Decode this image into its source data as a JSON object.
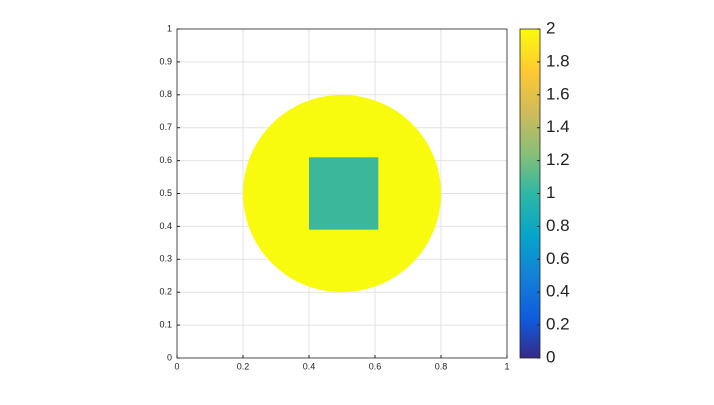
{
  "chart_data": {
    "type": "region",
    "xlim": [
      0,
      1
    ],
    "ylim": [
      0,
      1
    ],
    "xticks": [
      0,
      0.2,
      0.4,
      0.6,
      0.8,
      1
    ],
    "yticks": [
      0,
      0.1,
      0.2,
      0.3,
      0.4,
      0.5,
      0.6,
      0.7,
      0.8,
      0.9,
      1
    ],
    "grid": true,
    "regions": [
      {
        "shape": "circle",
        "cx": 0.5,
        "cy": 0.5,
        "r": 0.3,
        "value": 2,
        "color": "#f9fb0e"
      },
      {
        "shape": "rect",
        "x": [
          0.4,
          0.61
        ],
        "y": [
          0.39,
          0.61
        ],
        "value": 1,
        "color": "#3bb89b"
      }
    ],
    "colormap": "parula",
    "colorbar": {
      "lim": [
        0,
        2
      ],
      "ticks": [
        0,
        0.2,
        0.4,
        0.6,
        0.8,
        1,
        1.2,
        1.4,
        1.6,
        1.8,
        2
      ]
    }
  }
}
